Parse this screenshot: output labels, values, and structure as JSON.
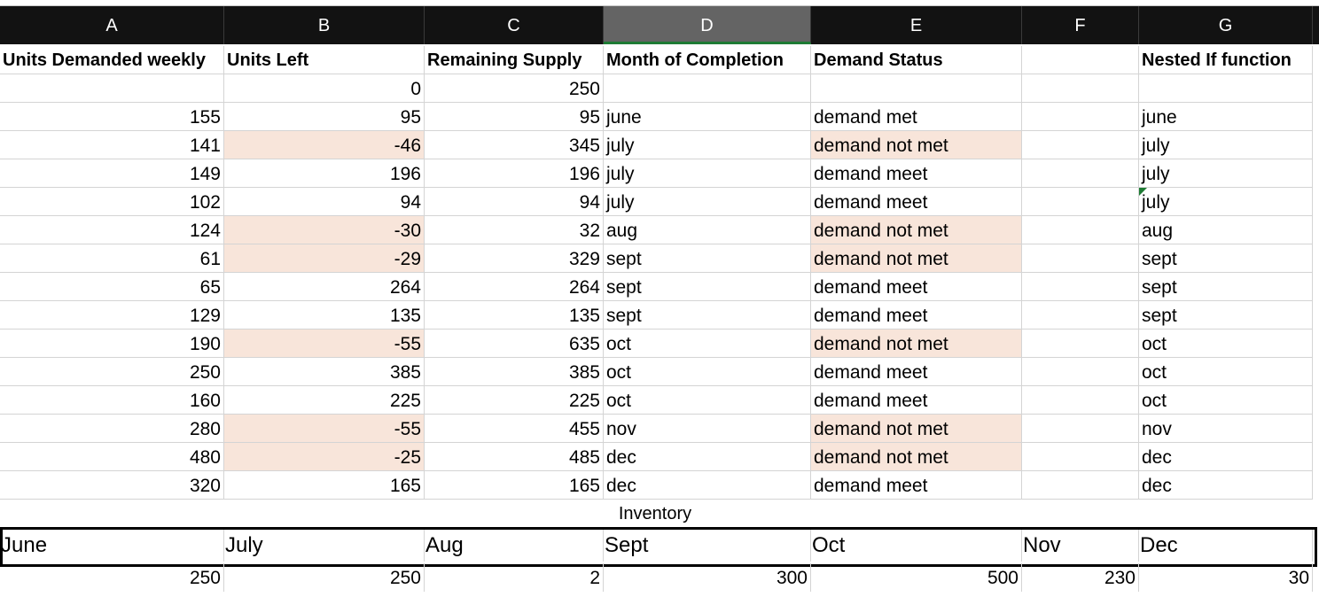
{
  "columns": [
    "A",
    "B",
    "C",
    "D",
    "E",
    "F",
    "G"
  ],
  "headers": [
    "Units Demanded weekly",
    "Units Left",
    "Remaining Supply",
    "Month of Completion",
    "Demand Status",
    "",
    "Nested If function"
  ],
  "first_row": [
    "",
    "0",
    "250",
    "",
    "",
    "",
    ""
  ],
  "rows": [
    [
      "155",
      "95",
      "95",
      "june",
      "demand met",
      "",
      "june"
    ],
    [
      "141",
      "-46",
      "345",
      "july",
      "demand not met",
      "",
      "july"
    ],
    [
      "149",
      "196",
      "196",
      "july",
      "demand meet",
      "",
      "july"
    ],
    [
      "102",
      "94",
      "94",
      "july",
      "demand meet",
      "",
      "july"
    ],
    [
      "124",
      "-30",
      "32",
      "aug",
      "demand not met",
      "",
      "aug"
    ],
    [
      "61",
      "-29",
      "329",
      "sept",
      "demand not met",
      "",
      "sept"
    ],
    [
      "65",
      "264",
      "264",
      "sept",
      "demand meet",
      "",
      "sept"
    ],
    [
      "129",
      "135",
      "135",
      "sept",
      "demand meet",
      "",
      "sept"
    ],
    [
      "190",
      "-55",
      "635",
      "oct",
      "demand not met",
      "",
      "oct"
    ],
    [
      "250",
      "385",
      "385",
      "oct",
      "demand meet",
      "",
      "oct"
    ],
    [
      "160",
      "225",
      "225",
      "oct",
      "demand meet",
      "",
      "oct"
    ],
    [
      "280",
      "-55",
      "455",
      "nov",
      "demand not met",
      "",
      "nov"
    ],
    [
      "480",
      "-25",
      "485",
      "dec",
      "demand not met",
      "",
      "dec"
    ],
    [
      "320",
      "165",
      "165",
      "dec",
      "demand meet",
      "",
      "dec"
    ]
  ],
  "inventory_label": "Inventory",
  "months": [
    "June",
    "July",
    "Aug",
    "Sept",
    "Oct",
    "Nov",
    "Dec"
  ],
  "month_values": [
    "250",
    "250",
    "2",
    "300",
    "500",
    "230",
    "30"
  ],
  "colors": {
    "highlight": "#f8e5da",
    "header_bg": "#121212",
    "selected_header": "#646464",
    "accent": "#1e7b34"
  }
}
